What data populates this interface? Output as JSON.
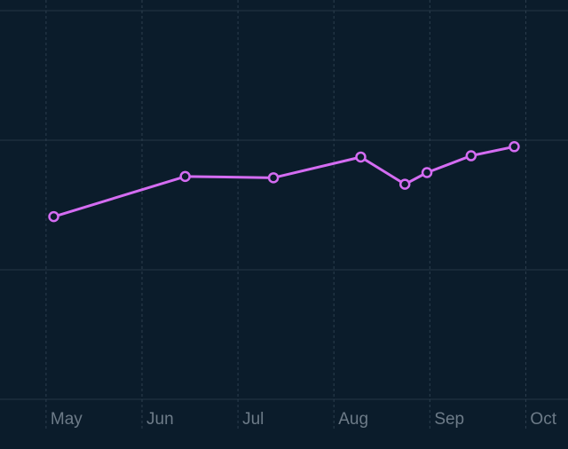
{
  "chart_data": {
    "type": "line",
    "x": [
      5.08,
      6.45,
      7.37,
      8.28,
      8.74,
      8.97,
      9.43,
      9.88
    ],
    "series": [
      {
        "color": "#d46cf2",
        "values": [
          1.41,
          1.72,
          1.71,
          1.87,
          1.66,
          1.75,
          1.88,
          1.95
        ]
      }
    ],
    "xlim": [
      4.52,
      10.44
    ],
    "xticks": [
      {
        "value": 5,
        "label": "May"
      },
      {
        "value": 6,
        "label": "Jun"
      },
      {
        "value": 7,
        "label": "Jul"
      },
      {
        "value": 8,
        "label": "Aug"
      },
      {
        "value": 9,
        "label": "Sep"
      },
      {
        "value": 10,
        "label": "Oct"
      }
    ],
    "ylim": [
      0,
      3
    ],
    "yticks": [
      0,
      1,
      2,
      3
    ],
    "grid": true
  }
}
